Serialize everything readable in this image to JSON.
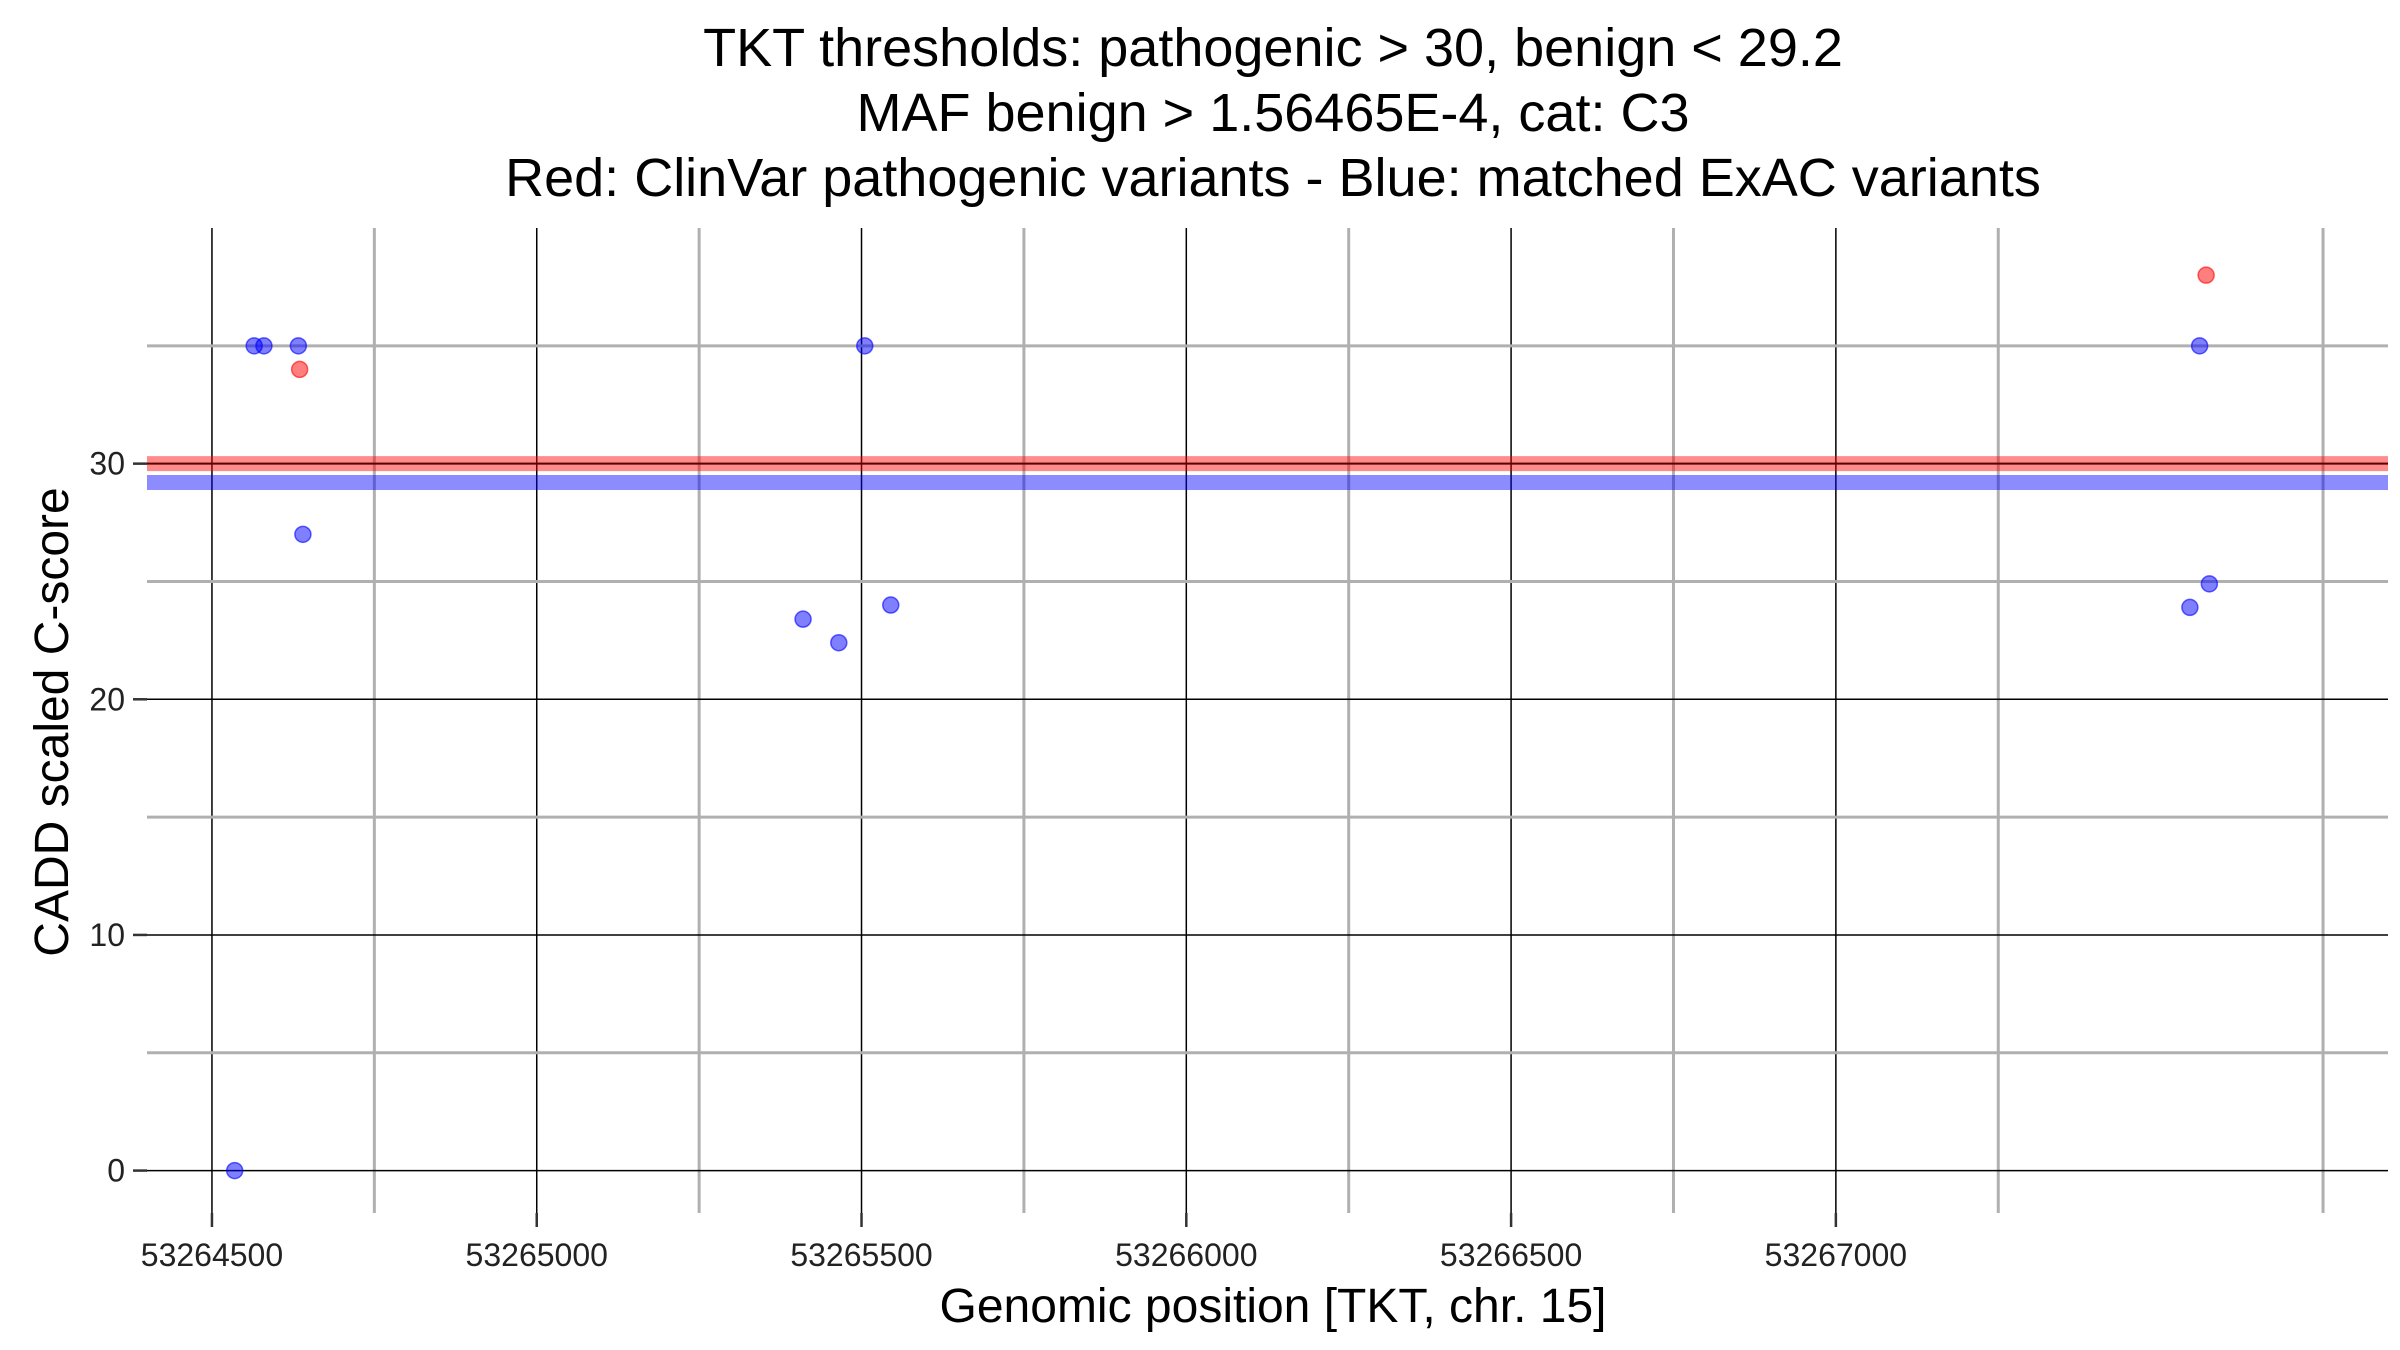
{
  "chart_data": {
    "type": "scatter",
    "title_lines": [
      "TKT thresholds: pathogenic > 30, benign < 29.2",
      "MAF benign > 1.56465E-4, cat: C3",
      "Red: ClinVar pathogenic variants - Blue: matched ExAC variants"
    ],
    "xlabel": "Genomic position [TKT, chr. 15]",
    "ylabel": "CADD scaled C-score",
    "xlim": [
      53264400,
      53267850
    ],
    "ylim": [
      -1.8,
      40
    ],
    "x_ticks": [
      53264500,
      53265000,
      53265500,
      53266000,
      53266500,
      53267000
    ],
    "x_tick_labels": [
      "53264500",
      "53265000",
      "53265500",
      "53266000",
      "53266500",
      "53267000"
    ],
    "y_ticks": [
      0,
      10,
      20,
      30
    ],
    "y_tick_labels": [
      "0",
      "10",
      "20",
      "30"
    ],
    "grid": true,
    "thresholds": [
      {
        "value": 30,
        "color": "#ff0000"
      },
      {
        "value": 29.2,
        "color": "#0000ff"
      }
    ],
    "series": [
      {
        "color": "#ff0000",
        "points": [
          {
            "x": 53264635,
            "y": 34
          },
          {
            "x": 53267570,
            "y": 38
          }
        ]
      },
      {
        "color": "#0000ff",
        "points": [
          {
            "x": 53264535,
            "y": 0
          },
          {
            "x": 53264565,
            "y": 35
          },
          {
            "x": 53264580,
            "y": 35
          },
          {
            "x": 53264633,
            "y": 35
          },
          {
            "x": 53264640,
            "y": 27
          },
          {
            "x": 53265410,
            "y": 23.4
          },
          {
            "x": 53265465,
            "y": 22.4
          },
          {
            "x": 53265505,
            "y": 35
          },
          {
            "x": 53265545,
            "y": 24
          },
          {
            "x": 53267545,
            "y": 23.9
          },
          {
            "x": 53267560,
            "y": 35
          },
          {
            "x": 53267575,
            "y": 24.9
          }
        ]
      }
    ]
  }
}
